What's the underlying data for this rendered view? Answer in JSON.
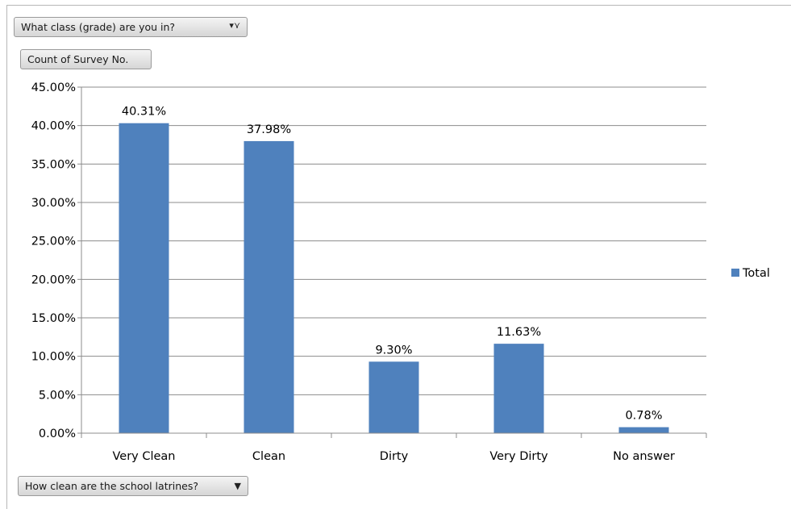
{
  "pivot": {
    "filter_field": "What class (grade) are you in?",
    "value_field": "Count of Survey No.",
    "axis_field": "How clean are the school latrines?"
  },
  "colors": {
    "bar": "#4f81bd",
    "grid": "#8c8c8c"
  },
  "icons": {
    "filter": "filter-dropdown-icon",
    "axis": "dropdown-arrow-icon"
  },
  "chart_data": {
    "type": "bar",
    "categories": [
      "Very Clean",
      "Clean",
      "Dirty",
      "Very Dirty",
      "No answer"
    ],
    "series": [
      {
        "name": "Total",
        "values": [
          40.31,
          37.98,
          9.3,
          11.63,
          0.78
        ]
      }
    ],
    "data_labels": [
      "40.31%",
      "37.98%",
      "9.30%",
      "11.63%",
      "0.78%"
    ],
    "yticks": [
      "0.00%",
      "5.00%",
      "10.00%",
      "15.00%",
      "20.00%",
      "25.00%",
      "30.00%",
      "35.00%",
      "40.00%",
      "45.00%"
    ],
    "ylim": [
      0,
      45
    ],
    "grid": true,
    "legend": "right"
  }
}
